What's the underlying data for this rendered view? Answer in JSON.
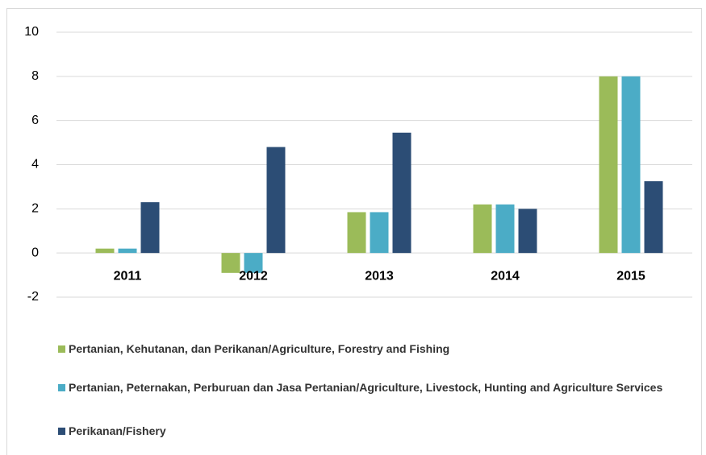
{
  "chart_data": {
    "type": "bar",
    "categories": [
      "2011",
      "2012",
      "2013",
      "2014",
      "2015"
    ],
    "series": [
      {
        "name": "Pertanian, Kehutanan, dan Perikanan/Agriculture, Forestry and Fishing",
        "color": "#9bbb59",
        "values": [
          0.2,
          -0.9,
          1.85,
          2.2,
          8.0
        ]
      },
      {
        "name": "Pertanian, Peternakan, Perburuan dan Jasa Pertanian/Agriculture, Livestock, Hunting and Agriculture Services",
        "color": "#4bacc6",
        "values": [
          0.2,
          -0.9,
          1.85,
          2.2,
          8.0
        ]
      },
      {
        "name": "Perikanan/Fishery",
        "color": "#2c4d75",
        "values": [
          2.3,
          4.8,
          5.45,
          2.0,
          3.25
        ]
      }
    ],
    "ylim": [
      -2,
      10
    ],
    "yticks": [
      -2,
      0,
      2,
      4,
      6,
      8,
      10
    ],
    "grid": true
  }
}
